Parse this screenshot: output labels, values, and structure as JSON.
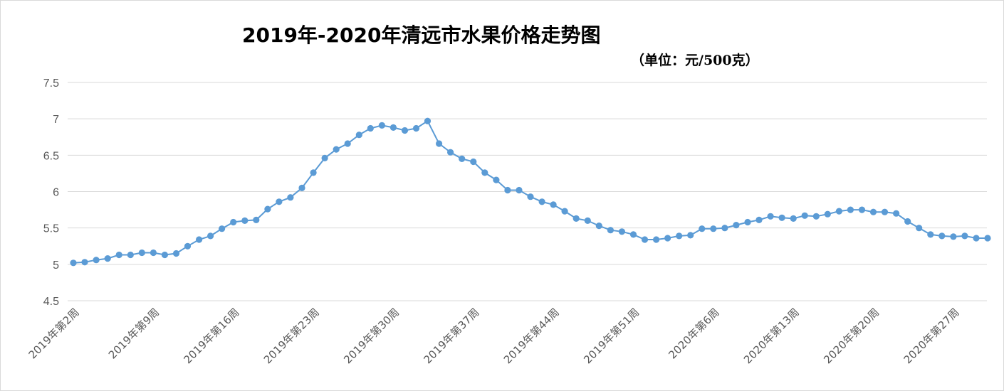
{
  "chart_data": {
    "type": "line",
    "title": "2019年-2020年清远市水果价格走势图",
    "subtitle": "（单位：元/500克）",
    "xlabel": "",
    "ylabel": "",
    "ylim": [
      4.5,
      7.5
    ],
    "yticks": [
      "7.5",
      "7",
      "6.5",
      "6",
      "5.5",
      "5",
      "4.5"
    ],
    "grid": true,
    "legend": "none",
    "color": "#5b9bd5",
    "x_labels": [
      "2019年第2周",
      "2019年第9周",
      "2019年第16周",
      "2019年第23周",
      "2019年第30周",
      "2019年第37周",
      "2019年第44周",
      "2019年第51周",
      "2020年第6周",
      "2020年第13周",
      "2020年第20周",
      "2020年第27周"
    ],
    "series": [
      {
        "values": [
          5.02,
          5.03,
          5.06,
          5.08,
          5.13,
          5.13,
          5.16,
          5.16,
          5.13,
          5.15,
          5.25,
          5.34,
          5.39,
          5.49,
          5.58,
          5.6,
          5.61,
          5.76,
          5.86,
          5.92,
          6.05,
          6.26,
          6.46,
          6.58,
          6.66,
          6.78,
          6.87,
          6.91,
          6.88,
          6.84,
          6.87,
          6.97,
          6.66,
          6.54,
          6.45,
          6.41,
          6.26,
          6.16,
          6.02,
          6.02,
          5.93,
          5.86,
          5.82,
          5.73,
          5.63,
          5.6,
          5.53,
          5.47,
          5.45,
          5.41,
          5.34,
          5.34,
          5.36,
          5.39,
          5.4,
          5.49,
          5.49,
          5.5,
          5.54,
          5.58,
          5.61,
          5.66,
          5.64,
          5.63,
          5.67,
          5.66,
          5.69,
          5.73,
          5.75,
          5.75,
          5.72,
          5.72,
          5.7,
          5.59,
          5.5,
          5.41,
          5.39,
          5.38,
          5.39,
          5.36,
          5.36
        ]
      }
    ]
  }
}
